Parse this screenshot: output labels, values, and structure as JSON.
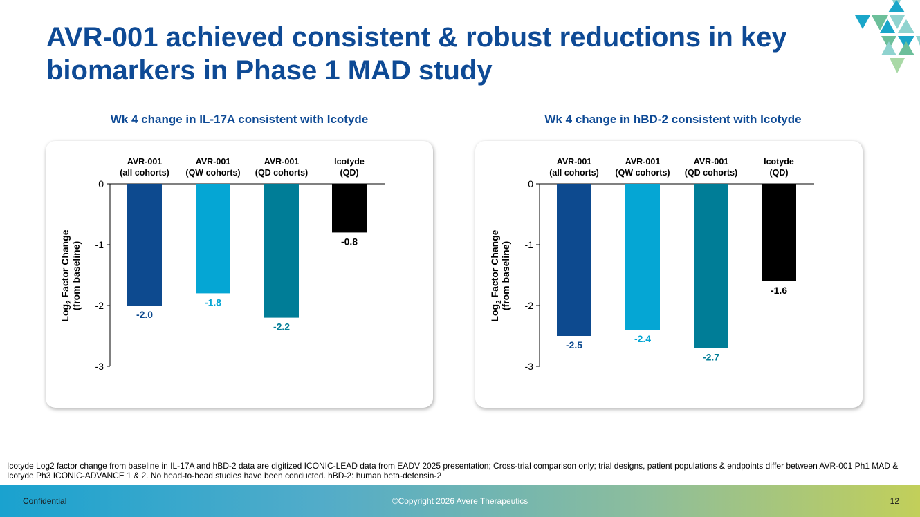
{
  "slide": {
    "title": "AVR-001 achieved consistent & robust reductions in key biomarkers in Phase 1 MAD study",
    "footnote": "Icotyde Log2 factor change from baseline in IL-17A and hBD-2 data are digitized ICONIC-LEAD data from EADV 2025 presentation; Cross-trial comparison only; trial designs, patient populations & endpoints differ between AVR-001 Ph1 MAD & Icotyde Ph3 ICONIC-ADVANCE 1 & 2. No head-to-head studies have been conducted. hBD-2: human beta-defensin-2"
  },
  "footer": {
    "left": "Confidential",
    "center": "©Copyright 2026 Avere Therapeutics",
    "page_number": "12"
  },
  "colors": {
    "title": "#0e4a95",
    "all_cohorts": "#0d4a8f",
    "qw_cohorts": "#05a6d4",
    "qd_cohorts": "#007d97",
    "icotyde": "#000000",
    "logo_dark": "#1aa6c9",
    "logo_light": "#8fd3cf",
    "logo_green": "#6cbf9a"
  },
  "logo": {
    "icon": "triangle-mosaic-logo-icon"
  },
  "chart_data": [
    {
      "type": "bar",
      "title": "Wk 4 change in IL-17A consistent with Icotyde",
      "ylabel_main": "Log",
      "ylabel_sub": "2",
      "ylabel_rest": " Factor Change",
      "ylabel_line2": "(from baseline)",
      "ylim": [
        -3,
        0
      ],
      "yticks": [
        0,
        -1,
        -2,
        -3
      ],
      "ytick_labels": [
        "0",
        "-1",
        "-2",
        "-3"
      ],
      "categories": [
        [
          "AVR-001",
          "(all cohorts)"
        ],
        [
          "AVR-001",
          "(QW cohorts)"
        ],
        [
          "AVR-001",
          "(QD cohorts)"
        ],
        [
          "Icotyde",
          "(QD)"
        ]
      ],
      "values": [
        -2.0,
        -1.8,
        -2.2,
        -0.8
      ],
      "value_labels": [
        "-2.0",
        "-1.8",
        "-2.2",
        "-0.8"
      ]
    },
    {
      "type": "bar",
      "title": "Wk 4 change in hBD-2 consistent with Icotyde",
      "ylabel_main": "Log",
      "ylabel_sub": "2",
      "ylabel_rest": " Factor Change",
      "ylabel_line2": "(from baseline)",
      "ylim": [
        -3,
        0
      ],
      "yticks": [
        0,
        -1,
        -2,
        -3
      ],
      "ytick_labels": [
        "0",
        "-1",
        "-2",
        "-3"
      ],
      "categories": [
        [
          "AVR-001",
          "(all cohorts)"
        ],
        [
          "AVR-001",
          "(QW cohorts)"
        ],
        [
          "AVR-001",
          "(QD cohorts)"
        ],
        [
          "Icotyde",
          "(QD)"
        ]
      ],
      "values": [
        -2.5,
        -2.4,
        -2.7,
        -1.6
      ],
      "value_labels": [
        "-2.5",
        "-2.4",
        "-2.7",
        "-1.6"
      ]
    }
  ]
}
